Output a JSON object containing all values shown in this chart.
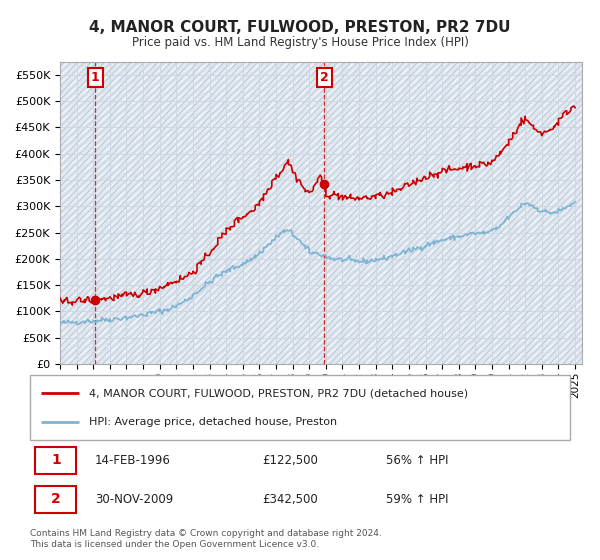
{
  "title": "4, MANOR COURT, FULWOOD, PRESTON, PR2 7DU",
  "subtitle": "Price paid vs. HM Land Registry's House Price Index (HPI)",
  "property_label": "4, MANOR COURT, FULWOOD, PRESTON, PR2 7DU (detached house)",
  "hpi_label": "HPI: Average price, detached house, Preston",
  "sale1_date": "1996-02-14",
  "sale1_label": "14-FEB-1996",
  "sale1_price": 122500,
  "sale1_pct": "56% ↑ HPI",
  "sale2_date": "2009-11-30",
  "sale2_label": "30-NOV-2009",
  "sale2_price": 342500,
  "sale2_pct": "59% ↑ HPI",
  "property_color": "#cc0000",
  "hpi_color": "#7fb3d3",
  "ylim": [
    0,
    575000
  ],
  "yticks": [
    0,
    50000,
    100000,
    150000,
    200000,
    250000,
    300000,
    350000,
    400000,
    450000,
    500000,
    550000
  ],
  "background_color": "#ffffff",
  "grid_color": "#cccccc",
  "hatch_color": "#e8eef4",
  "annotation_box_color": "#cc0000",
  "footer": "Contains HM Land Registry data © Crown copyright and database right 2024.\nThis data is licensed under the Open Government Licence v3.0.",
  "hpi_key_years": [
    1994.0,
    1995.0,
    1996.0,
    1997.0,
    1998.0,
    1999.0,
    2000.0,
    2001.0,
    2002.0,
    2003.0,
    2004.0,
    2005.0,
    2006.0,
    2007.0,
    2007.5,
    2008.0,
    2008.5,
    2009.0,
    2009.5,
    2010.0,
    2010.5,
    2011.0,
    2012.0,
    2013.0,
    2014.0,
    2015.0,
    2016.0,
    2017.0,
    2018.0,
    2019.0,
    2020.0,
    2020.5,
    2021.0,
    2021.5,
    2022.0,
    2022.5,
    2023.0,
    2023.5,
    2024.0,
    2024.5,
    2025.0
  ],
  "hpi_key_prices": [
    78000,
    80000,
    82000,
    85000,
    88000,
    93000,
    100000,
    110000,
    130000,
    155000,
    175000,
    190000,
    210000,
    240000,
    252000,
    248000,
    232000,
    215000,
    210000,
    205000,
    200000,
    198000,
    195000,
    198000,
    205000,
    215000,
    225000,
    235000,
    242000,
    248000,
    252000,
    262000,
    278000,
    292000,
    305000,
    300000,
    292000,
    288000,
    290000,
    298000,
    305000
  ],
  "prop_key_years": [
    1994.0,
    1995.0,
    1996.1,
    1997.0,
    1998.0,
    1999.0,
    2000.0,
    2001.0,
    2002.0,
    2003.0,
    2004.0,
    2005.0,
    2006.0,
    2007.0,
    2007.5,
    2007.75,
    2008.0,
    2008.5,
    2009.0,
    2009.9,
    2010.0,
    2010.5,
    2011.0,
    2012.0,
    2013.0,
    2014.0,
    2015.0,
    2016.0,
    2017.0,
    2018.0,
    2019.0,
    2020.0,
    2020.5,
    2021.0,
    2021.5,
    2022.0,
    2022.5,
    2023.0,
    2023.5,
    2024.0,
    2024.5,
    2025.0
  ],
  "prop_key_prices": [
    118000,
    120000,
    122500,
    125000,
    130000,
    135000,
    145000,
    158000,
    175000,
    210000,
    250000,
    280000,
    305000,
    355000,
    375000,
    385000,
    368000,
    345000,
    325000,
    342500,
    332000,
    322000,
    318000,
    315000,
    318000,
    325000,
    340000,
    355000,
    365000,
    372000,
    378000,
    385000,
    400000,
    420000,
    445000,
    465000,
    450000,
    440000,
    445000,
    460000,
    478000,
    490000
  ]
}
